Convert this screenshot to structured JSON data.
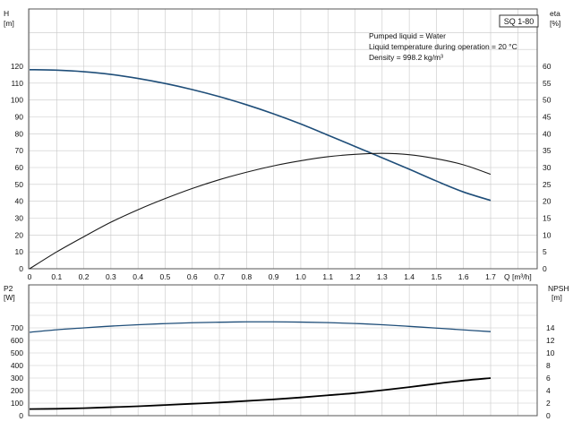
{
  "chart_data": [
    {
      "type": "line",
      "title": "SQ 1-80",
      "notes": [
        "Pumped liquid = Water",
        "Liquid temperature during operation = 20 °C",
        "Density = 998.2 kg/m³"
      ],
      "xlabel": "Q [m³/h]",
      "xlim": [
        0,
        1.7
      ],
      "x_ticks": [
        "0",
        "0.1",
        "0.2",
        "0.3",
        "0.4",
        "0.5",
        "0.6",
        "0.7",
        "0.8",
        "0.9",
        "1.0",
        "1.1",
        "1.2",
        "1.3",
        "1.4",
        "1.5",
        "1.6",
        "1.7"
      ],
      "ylabel_left": [
        "H",
        "[m]"
      ],
      "ylim_left": [
        0,
        120
      ],
      "y_ticks_left": [
        "0",
        "10",
        "20",
        "30",
        "40",
        "50",
        "60",
        "70",
        "80",
        "90",
        "100",
        "110",
        "120"
      ],
      "ylabel_right": [
        "eta",
        "[%]"
      ],
      "ylim_right": [
        0,
        60
      ],
      "y_ticks_right": [
        "0",
        "5",
        "10",
        "15",
        "20",
        "25",
        "30",
        "35",
        "40",
        "45",
        "50",
        "55",
        "60"
      ],
      "grid": true,
      "colors": {
        "head": "#1f4e79",
        "efficiency": "#1a1a1a",
        "grid": "#c8c8c8"
      },
      "series": [
        {
          "axis": "left",
          "x": [
            0,
            0.1,
            0.2,
            0.3,
            0.4,
            0.5,
            0.6,
            0.7,
            0.8,
            0.9,
            1.0,
            1.1,
            1.2,
            1.3,
            1.4,
            1.5,
            1.6,
            1.7
          ],
          "values": [
            118,
            117.7,
            116.8,
            115.2,
            112.8,
            109.8,
            106.2,
            102.0,
            97.2,
            91.8,
            85.8,
            79.2,
            72.5,
            65.8,
            59.0,
            52.0,
            45.5,
            40.5
          ]
        },
        {
          "axis": "right",
          "x": [
            0,
            0.1,
            0.2,
            0.3,
            0.4,
            0.5,
            0.6,
            0.7,
            0.8,
            0.9,
            1.0,
            1.1,
            1.2,
            1.3,
            1.4,
            1.5,
            1.6,
            1.7
          ],
          "values": [
            0,
            5.0,
            9.5,
            13.8,
            17.5,
            20.8,
            23.8,
            26.4,
            28.6,
            30.5,
            32.0,
            33.2,
            33.9,
            34.2,
            33.8,
            32.6,
            30.8,
            28.0
          ]
        }
      ]
    },
    {
      "type": "line",
      "xlim": [
        0,
        1.7
      ],
      "ylabel_left": [
        "P2",
        "[W]"
      ],
      "ylim_left": [
        0,
        800
      ],
      "y_ticks_left": [
        "0",
        "100",
        "200",
        "300",
        "400",
        "500",
        "600",
        "700"
      ],
      "ylabel_right": [
        "NPSH",
        "[m]"
      ],
      "ylim_right": [
        0,
        16
      ],
      "y_ticks_right": [
        "0",
        "2",
        "4",
        "6",
        "8",
        "10",
        "12",
        "14"
      ],
      "grid": true,
      "colors": {
        "power": "#1f4e79",
        "npsh": "#000000",
        "grid": "#c8c8c8"
      },
      "series": [
        {
          "axis": "left",
          "x": [
            0,
            0.1,
            0.2,
            0.3,
            0.4,
            0.5,
            0.6,
            0.7,
            0.8,
            0.9,
            1.0,
            1.1,
            1.2,
            1.3,
            1.4,
            1.5,
            1.6,
            1.7
          ],
          "values": [
            665,
            685,
            700,
            714,
            725,
            734,
            741,
            745,
            748,
            748,
            746,
            742,
            735,
            725,
            712,
            698,
            684,
            670
          ]
        },
        {
          "axis": "right",
          "x": [
            0,
            0.1,
            0.2,
            0.3,
            0.4,
            0.5,
            0.6,
            0.7,
            0.8,
            0.9,
            1.0,
            1.1,
            1.2,
            1.3,
            1.4,
            1.5,
            1.6,
            1.7
          ],
          "values": [
            1.05,
            1.1,
            1.2,
            1.35,
            1.5,
            1.7,
            1.9,
            2.1,
            2.35,
            2.6,
            2.9,
            3.25,
            3.6,
            4.05,
            4.55,
            5.1,
            5.6,
            6.0
          ]
        }
      ]
    }
  ]
}
